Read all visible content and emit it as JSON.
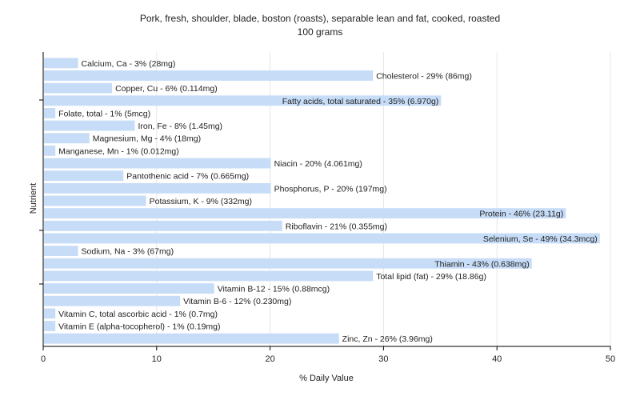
{
  "chart_data": {
    "type": "bar",
    "orientation": "horizontal",
    "title": "Pork, fresh, shoulder, blade, boston (roasts), separable lean and fat, cooked, roasted",
    "subtitle": "100 grams",
    "xlabel": "% Daily Value",
    "ylabel": "Nutrient",
    "xlim": [
      0,
      50
    ],
    "xticks": [
      0,
      10,
      20,
      30,
      40,
      50
    ],
    "grid": true,
    "bar_color": "#c6dcf7",
    "categories": [
      "Calcium, Ca",
      "Cholesterol",
      "Copper, Cu",
      "Fatty acids, total saturated",
      "Folate, total",
      "Iron, Fe",
      "Magnesium, Mg",
      "Manganese, Mn",
      "Niacin",
      "Pantothenic acid",
      "Phosphorus, P",
      "Potassium, K",
      "Protein",
      "Riboflavin",
      "Selenium, Se",
      "Sodium, Na",
      "Thiamin",
      "Total lipid (fat)",
      "Vitamin B-12",
      "Vitamin B-6",
      "Vitamin C, total ascorbic acid",
      "Vitamin E (alpha-tocopherol)",
      "Zinc, Zn"
    ],
    "values": [
      3,
      29,
      6,
      35,
      1,
      8,
      4,
      1,
      20,
      7,
      20,
      9,
      46,
      21,
      49,
      3,
      43,
      29,
      15,
      12,
      1,
      1,
      26
    ],
    "labels": [
      "Calcium, Ca - 3% (28mg)",
      "Cholesterol - 29% (86mg)",
      "Copper, Cu - 6% (0.114mg)",
      "Fatty acids, total saturated - 35% (6.970g)",
      "Folate, total - 1% (5mcg)",
      "Iron, Fe - 8% (1.45mg)",
      "Magnesium, Mg - 4% (18mg)",
      "Manganese, Mn - 1% (0.012mg)",
      "Niacin - 20% (4.061mg)",
      "Pantothenic acid - 7% (0.665mg)",
      "Phosphorus, P - 20% (197mg)",
      "Potassium, K - 9% (332mg)",
      "Protein - 46% (23.11g)",
      "Riboflavin - 21% (0.355mg)",
      "Selenium, Se - 49% (34.3mcg)",
      "Sodium, Na - 3% (67mg)",
      "Thiamin - 43% (0.638mg)",
      "Total lipid (fat) - 29% (18.86g)",
      "Vitamin B-12 - 15% (0.88mcg)",
      "Vitamin B-6 - 12% (0.230mg)",
      "Vitamin C, total ascorbic acid - 1% (0.7mg)",
      "Vitamin E (alpha-tocopherol) - 1% (0.19mg)",
      "Zinc, Zn - 26% (3.96mg)"
    ]
  }
}
